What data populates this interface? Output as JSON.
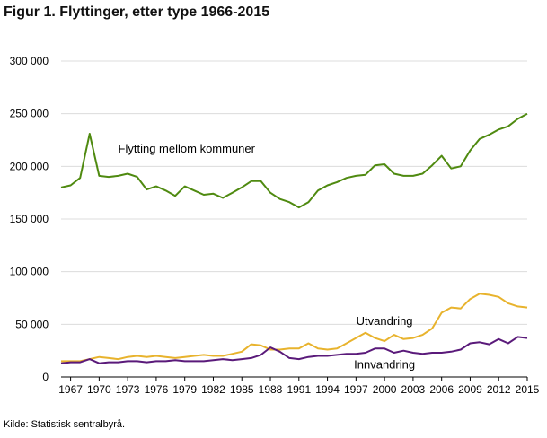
{
  "title": "Figur 1. Flyttinger, etter type 1966-2015",
  "source": "Kilde: Statistisk sentralbyrå.",
  "chart_data": {
    "type": "line",
    "title": "Figur 1. Flyttinger, etter type 1966-2015",
    "xlabel": "",
    "ylabel": "",
    "ylim": [
      0,
      300000
    ],
    "yticks": [
      0,
      50000,
      100000,
      150000,
      200000,
      250000,
      300000
    ],
    "ytick_labels": [
      "0",
      "50 000",
      "100 000",
      "150 000",
      "200 000",
      "250 000",
      "300 000"
    ],
    "xticks": [
      1967,
      1970,
      1973,
      1976,
      1979,
      1982,
      1985,
      1988,
      1991,
      1994,
      1997,
      2000,
      2003,
      2006,
      2009,
      2012,
      2015
    ],
    "xtick_labels": [
      "1967",
      "1970",
      "1973",
      "1976",
      "1979",
      "1982",
      "1985",
      "1988",
      "1991",
      "1994",
      "1997",
      "2000",
      "2003",
      "2006",
      "2009",
      "2012",
      "2015"
    ],
    "grid": "horizontal",
    "legend": "none (inline labels)",
    "x": [
      1966,
      1967,
      1968,
      1969,
      1970,
      1971,
      1972,
      1973,
      1974,
      1975,
      1976,
      1977,
      1978,
      1979,
      1980,
      1981,
      1982,
      1983,
      1984,
      1985,
      1986,
      1987,
      1988,
      1989,
      1990,
      1991,
      1992,
      1993,
      1994,
      1995,
      1996,
      1997,
      1998,
      1999,
      2000,
      2001,
      2002,
      2003,
      2004,
      2005,
      2006,
      2007,
      2008,
      2009,
      2010,
      2011,
      2012,
      2013,
      2014,
      2015
    ],
    "series": [
      {
        "name": "Flytting mellom kommuner",
        "color": "#4f8a10",
        "values": [
          180000,
          182000,
          189000,
          231000,
          191000,
          190000,
          191000,
          193000,
          190000,
          178000,
          181000,
          177000,
          172000,
          181000,
          177000,
          173000,
          174000,
          170000,
          175000,
          180000,
          186000,
          186000,
          175000,
          169000,
          166000,
          161000,
          166000,
          177000,
          182000,
          185000,
          189000,
          191000,
          192000,
          201000,
          202000,
          193000,
          191000,
          191000,
          193000,
          201000,
          210000,
          198000,
          200000,
          215000,
          226000,
          230000,
          235000,
          238000,
          245000,
          250000
        ]
      },
      {
        "name": "Utvandring",
        "color": "#e8b32d",
        "values": [
          15000,
          15000,
          15000,
          17000,
          19000,
          18000,
          17000,
          19000,
          20000,
          19000,
          20000,
          19000,
          18000,
          19000,
          20000,
          21000,
          20000,
          20000,
          22000,
          24000,
          31000,
          30000,
          26000,
          26000,
          27000,
          27000,
          32000,
          27000,
          26000,
          27000,
          32000,
          37000,
          42000,
          37000,
          34000,
          40000,
          36000,
          37000,
          40000,
          46000,
          61000,
          66000,
          65000,
          74000,
          79000,
          78000,
          76000,
          70000,
          67000,
          66000
        ]
      },
      {
        "name": "Innvandring",
        "color": "#5a1a7a",
        "values": [
          13000,
          14000,
          14000,
          17000,
          13000,
          14000,
          14000,
          15000,
          15000,
          14000,
          15000,
          15000,
          16000,
          15000,
          15000,
          15000,
          16000,
          17000,
          16000,
          17000,
          18000,
          21000,
          28000,
          24000,
          18000,
          17000,
          19000,
          20000,
          20000,
          21000,
          22000,
          22000,
          23000,
          27000,
          27000,
          23000,
          25000,
          23000,
          22000,
          23000,
          23000,
          24000,
          26000,
          32000,
          33000,
          31000,
          36000,
          32000,
          38000,
          37000
        ]
      }
    ]
  }
}
